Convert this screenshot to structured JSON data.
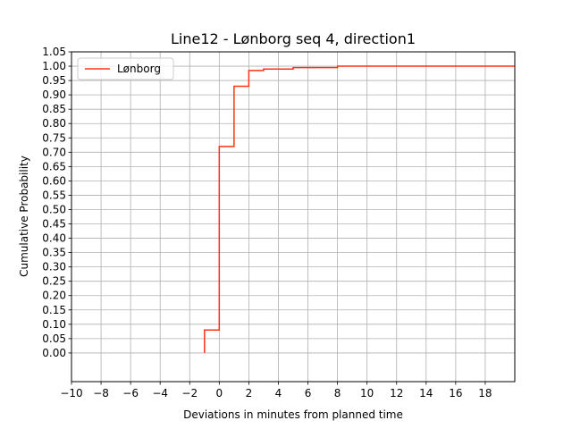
{
  "chart_data": {
    "type": "line",
    "drawstyle": "steps-post",
    "title": "Line12 - Lønborg seq 4, direction1",
    "xlabel": "Deviations in minutes from planned time",
    "ylabel": "Cumulative Probability",
    "xlim": [
      -10,
      20
    ],
    "ylim": [
      -0.1,
      1.05
    ],
    "xticks": [
      -10,
      -8,
      -6,
      -4,
      -2,
      0,
      2,
      4,
      6,
      8,
      10,
      12,
      14,
      16,
      18
    ],
    "xtick_labels": [
      "−10",
      "−8",
      "−6",
      "−4",
      "−2",
      "0",
      "2",
      "4",
      "6",
      "8",
      "10",
      "12",
      "14",
      "16",
      "18"
    ],
    "yticks": [
      0,
      0.05,
      0.1,
      0.15,
      0.2,
      0.25,
      0.3,
      0.35,
      0.4,
      0.45,
      0.5,
      0.55,
      0.6,
      0.65,
      0.7,
      0.75,
      0.8,
      0.85,
      0.9,
      0.95,
      1.0,
      1.05
    ],
    "ytick_labels": [
      "0.00",
      "0.05",
      "0.10",
      "0.15",
      "0.20",
      "0.25",
      "0.30",
      "0.35",
      "0.40",
      "0.45",
      "0.50",
      "0.55",
      "0.60",
      "0.65",
      "0.70",
      "0.75",
      "0.80",
      "0.85",
      "0.90",
      "0.95",
      "1.00",
      "1.05"
    ],
    "grid": true,
    "legend_position": "top-left",
    "series": [
      {
        "name": "Lønborg",
        "color": "#ff3311",
        "points": [
          [
            -1,
            0.0
          ],
          [
            -1,
            0.08
          ],
          [
            0,
            0.08
          ],
          [
            0,
            0.72
          ],
          [
            1,
            0.72
          ],
          [
            1,
            0.93
          ],
          [
            2,
            0.93
          ],
          [
            2,
            0.985
          ],
          [
            3,
            0.985
          ],
          [
            3,
            0.99
          ],
          [
            5,
            0.99
          ],
          [
            5,
            0.995
          ],
          [
            8,
            0.995
          ],
          [
            8,
            1.0
          ],
          [
            20,
            1.0
          ]
        ]
      }
    ]
  }
}
